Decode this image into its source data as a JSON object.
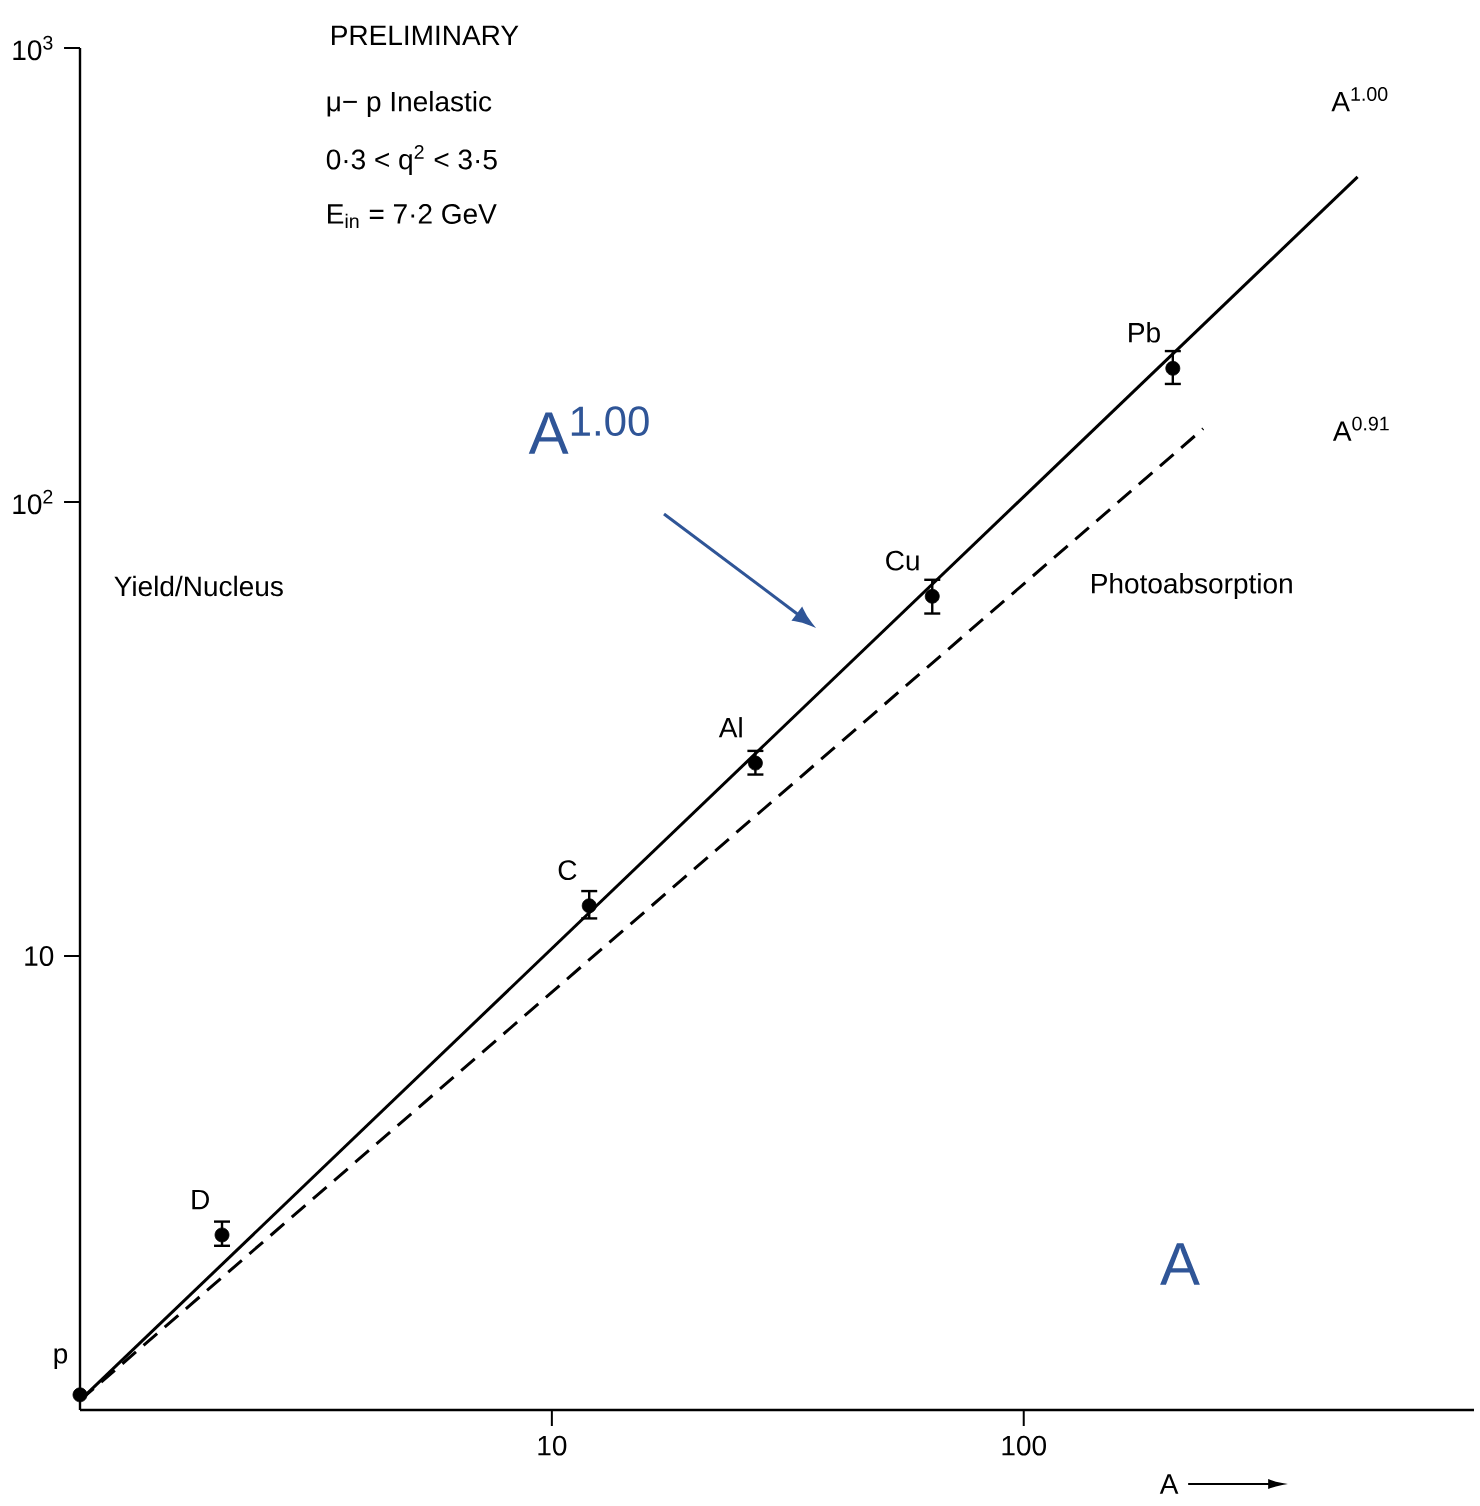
{
  "chart_data": {
    "type": "scatter",
    "title": "PRELIMINARY",
    "xlabel": "A",
    "ylabel": "Yield/Nucleus",
    "log": "xy",
    "grid": false,
    "xlim": [
      1,
      900
    ],
    "ylim": [
      1,
      1000
    ],
    "xticks": [
      10,
      100
    ],
    "yticks": [
      10,
      {
        "value": 100,
        "label": "10$^{2}$"
      },
      {
        "value": 1000,
        "label": "10$^{3}$"
      }
    ],
    "series": [
      {
        "marker": "circle",
        "color": "#000000",
        "x": [
          1,
          2,
          12,
          27,
          64,
          207
        ],
        "values": [
          1.08,
          2.43,
          12.9,
          26.6,
          62,
          197
        ],
        "errors": [
          null,
          [
            2.3,
            2.6
          ],
          [
            12.1,
            13.9
          ],
          [
            25.1,
            28.3
          ],
          [
            56.8,
            67.4
          ],
          [
            182,
            215
          ]
        ]
      },
      {
        "type": "line",
        "name": "A$^{1.00}$",
        "marker": "none",
        "line_style": "solid",
        "color": "#000000",
        "x": [
          1,
          510
        ],
        "values": [
          1.05,
          520
        ]
      },
      {
        "type": "line",
        "name": "A$^{0.91}$",
        "marker": "none",
        "line_style": "dashed",
        "color": "#000000",
        "x": [
          1,
          240
        ],
        "values": [
          1.05,
          145
        ]
      }
    ],
    "annotations": [
      "μ− p Inelastic",
      "0·3 < q$^{2}$ < 3·5",
      "E$_{in}$ = 7·2 GeV",
      {
        "text": "p",
        "x": 1,
        "y": 1.08
      },
      {
        "text": "D",
        "x": 2,
        "y": 2.43
      },
      {
        "text": "C",
        "x": 12,
        "y": 12.9
      },
      {
        "text": "Al",
        "x": 27,
        "y": 26.6
      },
      {
        "text": "Cu",
        "x": 64,
        "y": 62
      },
      {
        "text": "Pb",
        "x": 207,
        "y": 197
      },
      "Photoabsorption",
      "A$^{1.00}$",
      "A"
    ]
  }
}
